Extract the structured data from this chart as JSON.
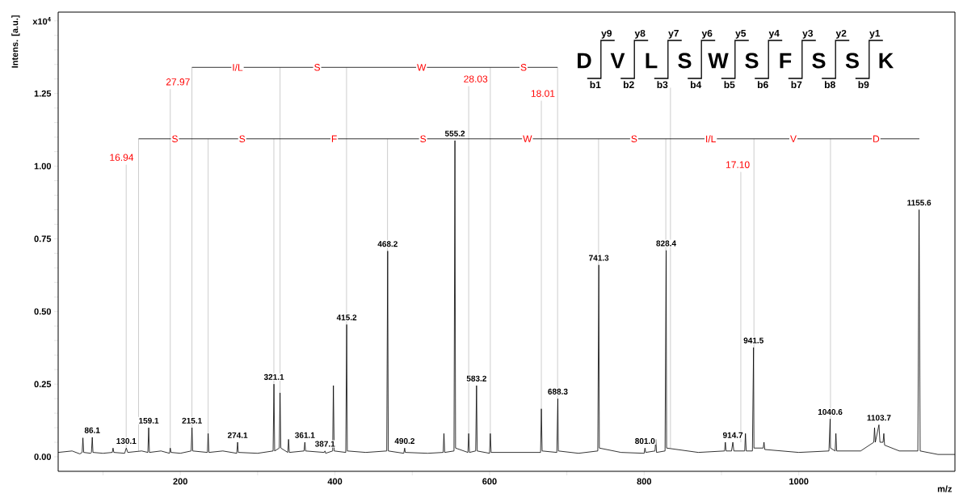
{
  "chart_data": {
    "type": "line",
    "xlabel": "m/z",
    "ylabel": "Intens. [a.u.]",
    "xlim": [
      42,
      1202
    ],
    "ylim": [
      -0.05,
      1.53
    ],
    "xticks": [
      {
        "value": 100,
        "label": null
      },
      200,
      {
        "value": 300,
        "label": null
      },
      400,
      {
        "value": 500,
        "label": null
      },
      600,
      {
        "value": 700,
        "label": null
      },
      800,
      {
        "value": 900,
        "label": null
      },
      1000,
      {
        "value": 1100,
        "label": null
      }
    ],
    "yticks": [
      {
        "value": 0,
        "label": "0.00"
      },
      {
        "value": 0.05,
        "label": null
      },
      {
        "value": 0.1,
        "label": null
      },
      {
        "value": 0.15,
        "label": null
      },
      {
        "value": 0.2,
        "label": null
      },
      {
        "value": 0.25,
        "label": "0.25"
      },
      {
        "value": 0.3,
        "label": null
      },
      {
        "value": 0.35,
        "label": null
      },
      {
        "value": 0.4,
        "label": null
      },
      {
        "value": 0.45,
        "label": null
      },
      {
        "value": 0.5,
        "label": "0.50"
      },
      {
        "value": 0.55,
        "label": null
      },
      {
        "value": 0.6,
        "label": null
      },
      {
        "value": 0.65,
        "label": null
      },
      {
        "value": 0.7,
        "label": null
      },
      {
        "value": 0.75,
        "label": "0.75"
      },
      {
        "value": 0.8,
        "label": null
      },
      {
        "value": 0.85,
        "label": null
      },
      {
        "value": 0.9,
        "label": null
      },
      {
        "value": 0.95,
        "label": null
      },
      {
        "value": 1.0,
        "label": "1.00"
      },
      {
        "value": 1.05,
        "label": null
      },
      {
        "value": 1.1,
        "label": null
      },
      {
        "value": 1.15,
        "label": null
      },
      {
        "value": 1.2,
        "label": null
      },
      {
        "value": 1.25,
        "label": "1.25"
      },
      {
        "value": 1.3,
        "label": null
      },
      {
        "value": 1.35,
        "label": null
      },
      {
        "value": 1.4,
        "label": null
      },
      {
        "value": 1.45,
        "label": null
      },
      {
        "value": 1.5,
        "label": "x10$^{4}$"
      }
    ],
    "series": [
      {
        "color": "#c0c0c0",
        "x": [
          130,
          130
        ],
        "values": [
          0.03,
          1.005
        ]
      },
      {
        "color": "#c0c0c0",
        "x": [
          146,
          146
        ],
        "values": [
          0.02,
          1.094
        ]
      },
      {
        "color": "#c0c0c0",
        "x": [
          187,
          187
        ],
        "values": [
          0.03,
          1.265
        ]
      },
      {
        "color": "#c0c0c0",
        "x": [
          215,
          215
        ],
        "values": [
          0.1,
          1.34
        ]
      },
      {
        "color": "#c0c0c0",
        "x": [
          236,
          236
        ],
        "values": [
          0.08,
          1.094
        ]
      },
      {
        "color": "#c0c0c0",
        "x": [
          321,
          321
        ],
        "values": [
          0.25,
          1.094
        ]
      },
      {
        "color": "#c0c0c0",
        "x": [
          329,
          329
        ],
        "values": [
          0.22,
          1.34
        ]
      },
      {
        "color": "#c0c0c0",
        "x": [
          415,
          415
        ],
        "values": [
          0.455,
          1.34
        ]
      },
      {
        "color": "#c0c0c0",
        "x": [
          468,
          468
        ],
        "values": [
          0.708,
          1.094
        ]
      },
      {
        "color": "#c0c0c0",
        "x": [
          573,
          573
        ],
        "values": [
          0.08,
          1.275
        ]
      },
      {
        "color": "#c0c0c0",
        "x": [
          601,
          601
        ],
        "values": [
          0.08,
          1.34
        ]
      },
      {
        "color": "#c0c0c0",
        "x": [
          667,
          667
        ],
        "values": [
          0.165,
          1.225
        ]
      },
      {
        "color": "#c0c0c0",
        "x": [
          688,
          688
        ],
        "values": [
          0.2,
          1.34
        ]
      },
      {
        "color": "#c0c0c0",
        "x": [
          741,
          741
        ],
        "values": [
          0.66,
          1.094
        ]
      },
      {
        "color": "#c0c0c0",
        "x": [
          828,
          828
        ],
        "values": [
          0.71,
          1.094
        ]
      },
      {
        "color": "#c0c0c0",
        "x": [
          834,
          834
        ],
        "values": [
          0.03,
          1.27
        ]
      },
      {
        "color": "#c0c0c0",
        "x": [
          925,
          925
        ],
        "values": [
          0.05,
          0.98
        ]
      },
      {
        "color": "#c0c0c0",
        "x": [
          942,
          942
        ],
        "values": [
          0.376,
          1.094
        ]
      },
      {
        "color": "#c0c0c0",
        "x": [
          1041,
          1041
        ],
        "values": [
          0.13,
          1.094
        ]
      },
      {
        "color": "#000000",
        "x": [
          215,
          329,
          415,
          601,
          688
        ],
        "values": [
          1.34,
          1.34,
          1.34,
          1.34,
          1.34
        ]
      },
      {
        "color": "#000000",
        "x": [
          146,
          236,
          321,
          468,
          555,
          741,
          828,
          942,
          1041,
          1156
        ],
        "values": [
          1.094,
          1.094,
          1.094,
          1.094,
          1.094,
          1.094,
          1.094,
          1.094,
          1.094,
          1.094
        ]
      },
      {
        "color": "#000000",
        "x": [
          42,
          60,
          70,
          73,
          74,
          75,
          84,
          85,
          86.1,
          87,
          100,
          112,
          113,
          114,
          128,
          130.1,
          132,
          150,
          158,
          159.1,
          160,
          175,
          186,
          187,
          188,
          200,
          214,
          215.1,
          216,
          235,
          236,
          237,
          255,
          273,
          274.1,
          275,
          300,
          320,
          321.1,
          322,
          328,
          329,
          330,
          339,
          340,
          341,
          360,
          361.1,
          362,
          386,
          387.1,
          388,
          397,
          398,
          399,
          414,
          415.2,
          416,
          440,
          467,
          468.2,
          469,
          489,
          490.2,
          491,
          520,
          540,
          541,
          542,
          554,
          555.2,
          556,
          572,
          573,
          574,
          582,
          583.2,
          584,
          600,
          601,
          602,
          630,
          666,
          667,
          668,
          687,
          688.3,
          689,
          715,
          740,
          741.3,
          742,
          770,
          800,
          801.0,
          802,
          814,
          815,
          816,
          827,
          828.4,
          829,
          870,
          904,
          905,
          906,
          913,
          914.7,
          916,
          930,
          931,
          932,
          940,
          941.5,
          942,
          954,
          955,
          956,
          1000,
          1039,
          1040.6,
          1041,
          1047,
          1048,
          1049,
          1080,
          1097,
          1098,
          1099,
          1103.7,
          1105,
          1109,
          1110,
          1111,
          1130,
          1154,
          1155.6,
          1157,
          1180,
          1202
        ],
        "values": [
          0.015,
          0.02,
          0.01,
          0.015,
          0.065,
          0.015,
          0.012,
          0.015,
          0.067,
          0.015,
          0.012,
          0.015,
          0.03,
          0.015,
          0.012,
          0.03,
          0.015,
          0.02,
          0.015,
          0.1,
          0.015,
          0.02,
          0.012,
          0.03,
          0.015,
          0.012,
          0.02,
          0.1,
          0.02,
          0.015,
          0.08,
          0.015,
          0.02,
          0.012,
          0.05,
          0.015,
          0.012,
          0.02,
          0.25,
          0.02,
          0.03,
          0.22,
          0.03,
          0.015,
          0.06,
          0.015,
          0.02,
          0.05,
          0.02,
          0.015,
          0.02,
          0.012,
          0.02,
          0.245,
          0.02,
          0.015,
          0.455,
          0.02,
          0.015,
          0.02,
          0.708,
          0.02,
          0.012,
          0.03,
          0.015,
          0.012,
          0.015,
          0.08,
          0.015,
          0.02,
          1.088,
          0.03,
          0.015,
          0.08,
          0.015,
          0.02,
          0.245,
          0.02,
          0.012,
          0.08,
          0.015,
          0.015,
          0.015,
          0.165,
          0.02,
          0.015,
          0.2,
          0.02,
          0.012,
          0.02,
          0.66,
          0.03,
          0.015,
          0.012,
          0.03,
          0.015,
          0.02,
          0.06,
          0.015,
          0.02,
          0.71,
          0.03,
          0.015,
          0.02,
          0.05,
          0.02,
          0.02,
          0.05,
          0.02,
          0.02,
          0.08,
          0.02,
          0.02,
          0.376,
          0.03,
          0.03,
          0.05,
          0.025,
          0.015,
          0.02,
          0.13,
          0.03,
          0.02,
          0.08,
          0.02,
          0.02,
          0.05,
          0.1,
          0.05,
          0.11,
          0.05,
          0.05,
          0.08,
          0.04,
          0.02,
          0.02,
          0.85,
          0.02,
          0.008,
          0.008
        ]
      }
    ],
    "annotations": [
      "D",
      "V",
      "L",
      "S",
      "W",
      "S",
      "F",
      "S",
      "S",
      "K",
      "y9",
      "y8",
      "y7",
      "y6",
      "y5",
      "y4",
      "y3",
      "y2",
      "y1",
      "b1",
      "b2",
      "b3",
      "b4",
      "b5",
      "b6",
      "b7",
      "b8",
      "b9",
      {
        "text": "I/L",
        "x": 274,
        "y": 1.34
      },
      {
        "text": "S",
        "x": 377,
        "y": 1.34
      },
      {
        "text": "W",
        "x": 512,
        "y": 1.34
      },
      {
        "text": "S",
        "x": 644,
        "y": 1.34
      },
      {
        "text": "S",
        "x": 193,
        "y": 1.094
      },
      {
        "text": "S",
        "x": 280,
        "y": 1.094
      },
      {
        "text": "F",
        "x": 399,
        "y": 1.094
      },
      {
        "text": "S",
        "x": 514,
        "y": 1.094
      },
      {
        "text": "W",
        "x": 649,
        "y": 1.094
      },
      {
        "text": "S",
        "x": 787,
        "y": 1.094
      },
      {
        "text": "I/L",
        "x": 886,
        "y": 1.094
      },
      {
        "text": "V",
        "x": 993,
        "y": 1.094
      },
      {
        "text": "D",
        "x": 1100,
        "y": 1.094
      },
      {
        "text": "27.97",
        "x": 197,
        "y": 1.29
      },
      {
        "text": "28.03",
        "x": 582,
        "y": 1.3
      },
      {
        "text": "18.01",
        "x": 669,
        "y": 1.25
      },
      {
        "text": "16.94",
        "x": 124,
        "y": 1.03
      },
      {
        "text": "17.10",
        "x": 921,
        "y": 1.005
      },
      {
        "text": "86.1",
        "x": 86.1,
        "y": 0.067
      },
      {
        "text": "130.1",
        "x": 130.1,
        "y": 0.03
      },
      {
        "text": "159.1",
        "x": 159.1,
        "y": 0.1
      },
      {
        "text": "215.1",
        "x": 215.1,
        "y": 0.1
      },
      {
        "text": "274.1",
        "x": 274.1,
        "y": 0.05
      },
      {
        "text": "321.1",
        "x": 321.1,
        "y": 0.25
      },
      {
        "text": "361.1",
        "x": 361.1,
        "y": 0.05
      },
      {
        "text": "387.1",
        "x": 387.1,
        "y": 0.02
      },
      {
        "text": "415.2",
        "x": 415.2,
        "y": 0.455
      },
      {
        "text": "468.2",
        "x": 468.2,
        "y": 0.708
      },
      {
        "text": "490.2",
        "x": 490.2,
        "y": 0.03
      },
      {
        "text": "555.2",
        "x": 555.2,
        "y": 1.088
      },
      {
        "text": "583.2",
        "x": 583.2,
        "y": 0.245
      },
      {
        "text": "688.3",
        "x": 688.3,
        "y": 0.2
      },
      {
        "text": "741.3",
        "x": 741.3,
        "y": 0.66
      },
      {
        "text": "801.0",
        "x": 801.0,
        "y": 0.03
      },
      {
        "text": "828.4",
        "x": 828.4,
        "y": 0.71
      },
      {
        "text": "914.7",
        "x": 914.7,
        "y": 0.05
      },
      {
        "text": "941.5",
        "x": 941.5,
        "y": 0.376
      },
      {
        "text": "1040.6",
        "x": 1040.6,
        "y": 0.13
      },
      {
        "text": "1103.7",
        "x": 1103.7,
        "y": 0.11
      },
      {
        "text": "1155.6",
        "x": 1155.6,
        "y": 0.85
      }
    ]
  }
}
